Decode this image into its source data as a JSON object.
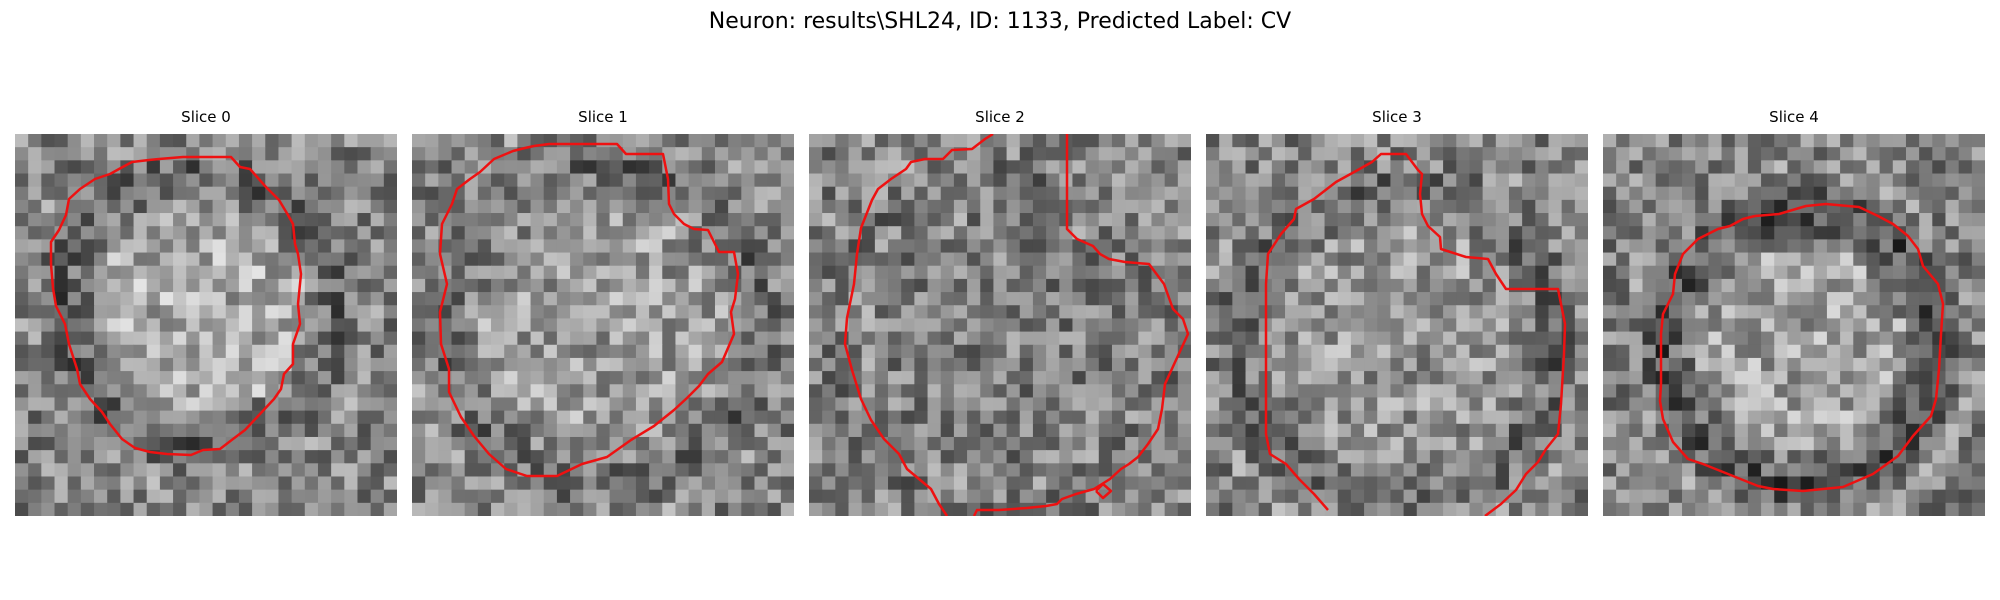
{
  "figure": {
    "title": "Neuron: results\\SHL24, ID: 1133, Predicted Label: CV",
    "colors": {
      "contour": "#ee1111",
      "background": "#ffffff"
    }
  },
  "panels": [
    {
      "title": "Slice 0",
      "image": "grayscale-noise-slice",
      "overlay": "red-roi-contour"
    },
    {
      "title": "Slice 1",
      "image": "grayscale-noise-slice",
      "overlay": "red-roi-contour"
    },
    {
      "title": "Slice 2",
      "image": "grayscale-noise-slice",
      "overlay": "red-roi-contour"
    },
    {
      "title": "Slice 3",
      "image": "grayscale-noise-slice",
      "overlay": "red-roi-contour"
    },
    {
      "title": "Slice 4",
      "image": "grayscale-noise-slice",
      "overlay": "red-roi-contour"
    }
  ]
}
